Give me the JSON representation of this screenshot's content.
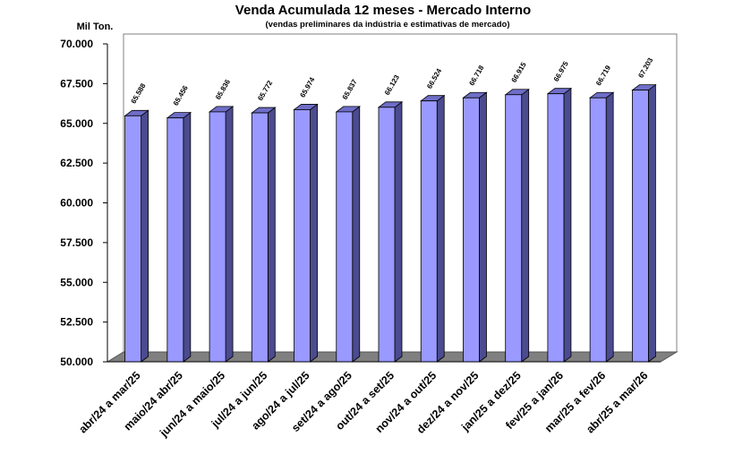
{
  "chart_data": {
    "type": "bar",
    "title": "Venda Acumulada 12 meses -  Mercado Interno",
    "subtitle": "(vendas preliminares da indústria e estimativas de mercado)",
    "ylabel": "Mil Ton.",
    "xlabel": "",
    "ylim": [
      50000,
      70000
    ],
    "yticks": [
      "50.000",
      "52.500",
      "55.000",
      "57.500",
      "60.000",
      "62.500",
      "65.000",
      "67.500",
      "70.000"
    ],
    "ytick_values": [
      50000,
      52500,
      55000,
      57500,
      60000,
      62500,
      65000,
      67500,
      70000
    ],
    "categories": [
      "abr/24 a mar/25",
      "maio/24 abr/25",
      "jun/24 a maio/25",
      "jul/24 a jun/25",
      "ago/24 a jul/25",
      "set/24 a ago/25",
      "out/24 a set/25",
      "nov/24 a out/25",
      "dez/24 a nov/25",
      "jan/25 a dez/25",
      "fev/25 a jan/26",
      "mar/25 a fev/26",
      "abr/25 a mar/26"
    ],
    "values": [
      65588,
      65456,
      65836,
      65772,
      65974,
      65837,
      66123,
      66524,
      66718,
      66915,
      66975,
      66719,
      67203
    ],
    "value_labels": [
      "65.588",
      "65.456",
      "65.836",
      "65.772",
      "65.974",
      "65.837",
      "66.123",
      "66.524",
      "66.718",
      "66.915",
      "66.975",
      "66.719",
      "67.203"
    ],
    "bar_color": "#9999ff",
    "bar_side_color": "#4b4b8f",
    "bar_top_color": "#6e6ec8",
    "floor_color": "#808080",
    "grid": false,
    "legend": "none"
  }
}
